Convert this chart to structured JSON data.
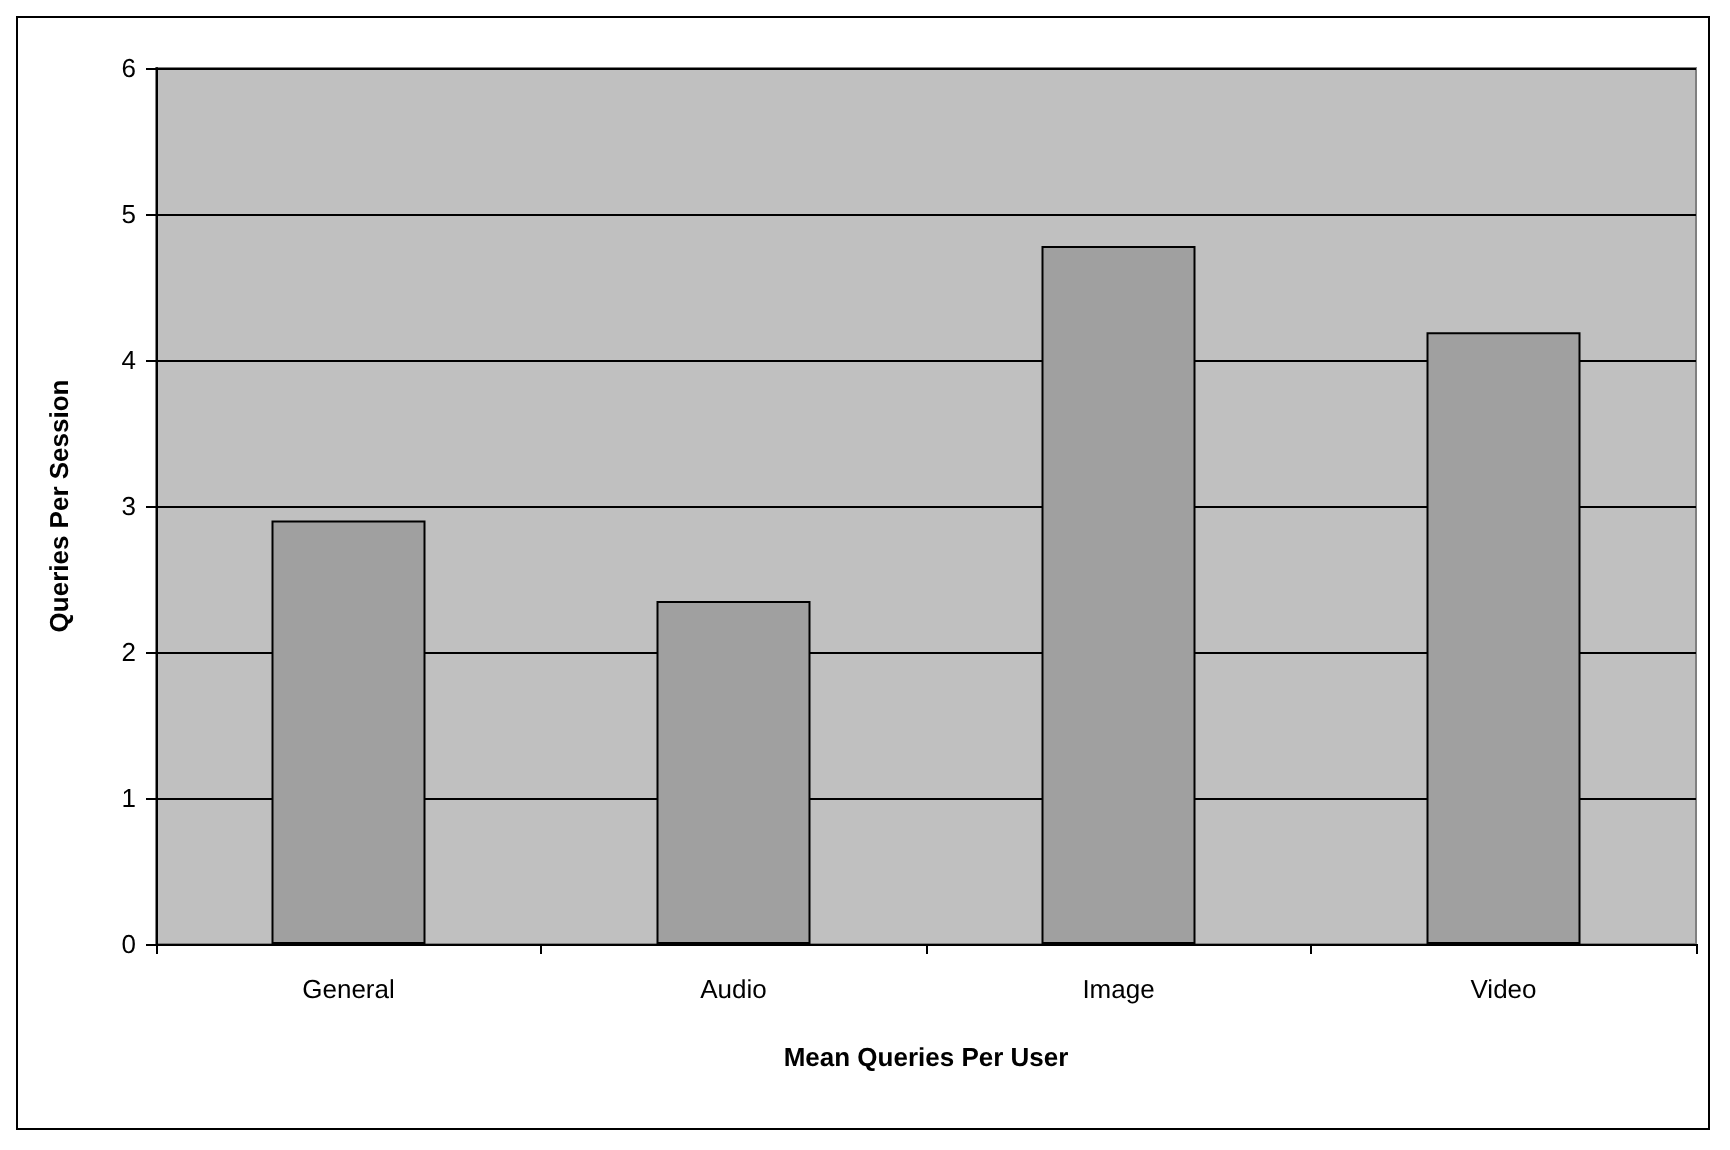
{
  "chart_data": {
    "type": "bar",
    "xlabel": "Mean Queries Per User",
    "ylabel": "Queries Per Session",
    "categories": [
      "General",
      "Audio",
      "Image",
      "Video"
    ],
    "values": [
      2.9,
      2.35,
      4.78,
      4.19
    ],
    "color": "#a0a0a0",
    "ylim": [
      0,
      6
    ],
    "yticks": [
      0,
      1,
      2,
      3,
      4,
      5,
      6
    ],
    "grid": "y"
  }
}
